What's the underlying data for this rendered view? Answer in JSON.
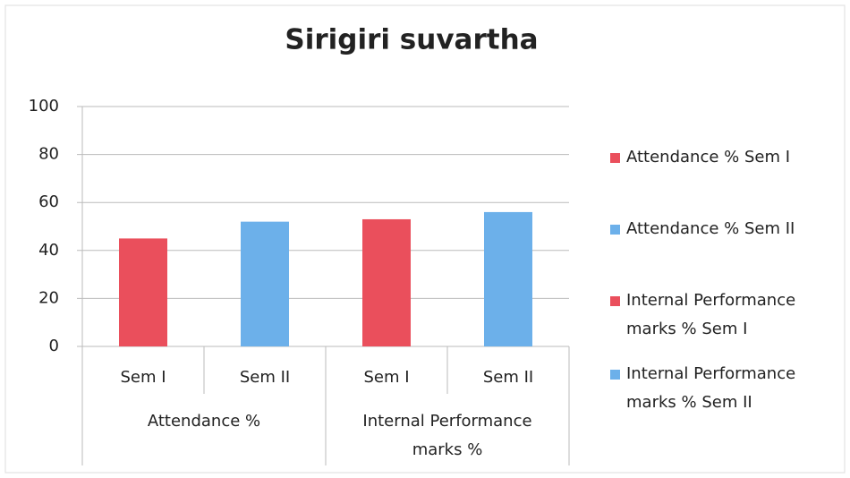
{
  "chart_data": {
    "type": "bar",
    "title": "Sirigiri suvartha",
    "categories": [
      "Sem I",
      "Sem II",
      "Sem I",
      "Sem II"
    ],
    "groups": [
      "Attendance %",
      "Internal Performance marks %"
    ],
    "series": [
      {
        "name": "Attendance % Sem I",
        "color": "#ea4f5c",
        "values": [
          45,
          null,
          null,
          null
        ]
      },
      {
        "name": "Attendance % Sem II",
        "color": "#6cb0ea",
        "values": [
          null,
          52,
          null,
          null
        ]
      },
      {
        "name": "Internal Performance marks % Sem I",
        "color": "#ea4f5c",
        "values": [
          null,
          null,
          53,
          null
        ]
      },
      {
        "name": "Internal Performance marks % Sem II",
        "color": "#6cb0ea",
        "values": [
          null,
          null,
          null,
          56
        ]
      }
    ],
    "ylim": [
      0,
      100
    ],
    "yticks": [
      0,
      20,
      40,
      60,
      80,
      100
    ],
    "grid": true,
    "legend": "right"
  }
}
